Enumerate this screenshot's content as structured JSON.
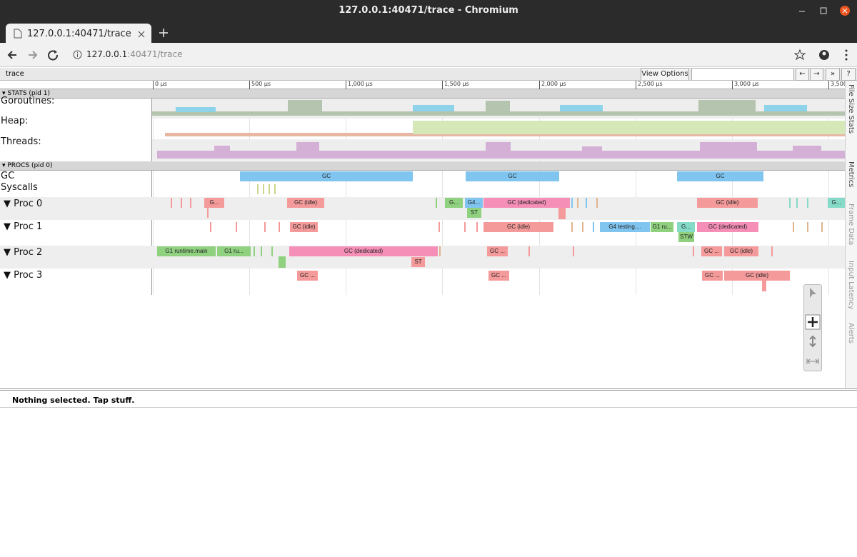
{
  "window": {
    "title": "127.0.0.1:40471/trace - Chromium"
  },
  "tab": {
    "title": "127.0.0.1:40471/trace"
  },
  "address": {
    "host": "127.0.0.1",
    "path": ":40471/trace"
  },
  "toolbar": {
    "label": "trace",
    "view_options": "View Options",
    "buttons": [
      "←",
      "→",
      "»",
      "?"
    ]
  },
  "ruler": {
    "ticks": [
      "0 μs",
      "500 μs",
      "1,000 μs",
      "1,500 μs",
      "2,000 μs",
      "2,500 μs",
      "3,000 μs",
      "3,500 μs"
    ]
  },
  "stats": {
    "header": "▾ STATS (pid 1)",
    "tracks": [
      "Goroutines:",
      "Heap:",
      "Threads:"
    ]
  },
  "procs": {
    "header": "▾ PROCS (pid 0)",
    "tracks": [
      "GC",
      "Syscalls",
      "▼ Proc 0",
      "▼ Proc 1",
      "▼ Proc 2",
      "▼ Proc 3"
    ],
    "gc": [
      "GC",
      "GC",
      "GC"
    ],
    "proc0": [
      "G...",
      "GC (idle)",
      "G...",
      "G4...",
      "GC (dedicated)",
      "GC (idle)",
      "G...",
      "ST"
    ],
    "proc1": [
      "GC (idle)",
      "GC (idle)",
      "G4 testing....",
      "G1 ru...",
      "G...",
      "GC (dedicated)",
      "STW"
    ],
    "proc2": [
      "G1 runtime.main",
      "G1 ru...",
      "GC (dedicated)",
      "ST",
      "GC ...",
      "GC ...",
      "GC (idle)"
    ],
    "proc3": [
      "GC ...",
      "GC ...",
      "GC ...",
      "GC (idle)"
    ]
  },
  "side_tabs": [
    "File Size Stats",
    "Metrics",
    "Frame Data",
    "Input Latency",
    "Alerts"
  ],
  "status": "Nothing selected. Tap stuff."
}
